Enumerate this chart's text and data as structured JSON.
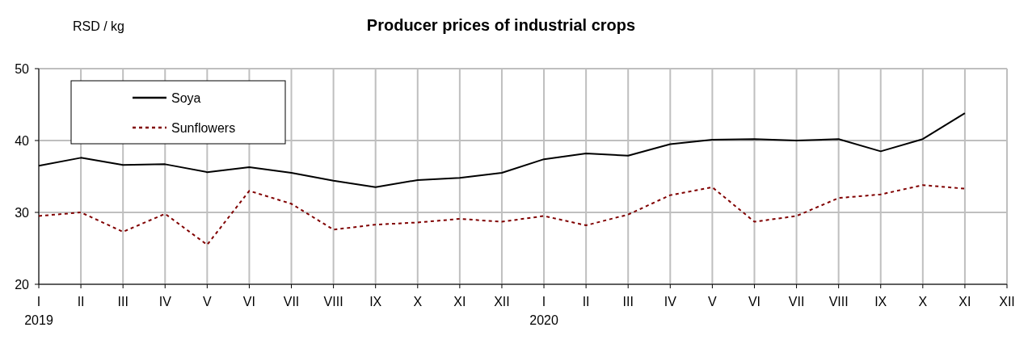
{
  "chart_data": {
    "type": "line",
    "title": "Producer prices of industrial crops",
    "ylabel": "RSD / kg",
    "categories": [
      "I\n2019",
      "II",
      "III",
      "IV",
      "V",
      "VI",
      "VII",
      "VIII",
      "IX",
      "X",
      "XI",
      "XII",
      "I\n2020",
      "II",
      "III",
      "IV",
      "V",
      "VI",
      "VII",
      "VIII",
      "IX",
      "X",
      "XI",
      "XII"
    ],
    "series": [
      {
        "name": "Soya",
        "color": "#000000",
        "line_style": "solid",
        "values": [
          36.5,
          37.6,
          36.6,
          36.7,
          35.6,
          36.3,
          35.5,
          34.4,
          33.5,
          34.5,
          34.8,
          35.5,
          37.4,
          38.2,
          37.9,
          39.5,
          40.1,
          40.2,
          40.0,
          40.2,
          38.5,
          40.2,
          43.8,
          null
        ]
      },
      {
        "name": "Sunflowers",
        "color": "#800000",
        "line_style": "dotted",
        "values": [
          29.5,
          30.0,
          27.3,
          29.8,
          25.5,
          33.0,
          31.2,
          27.6,
          28.3,
          28.6,
          29.1,
          28.7,
          29.5,
          28.2,
          29.7,
          32.4,
          33.5,
          28.7,
          29.5,
          32.0,
          32.5,
          33.8,
          33.3,
          null
        ]
      }
    ],
    "ylim": [
      20,
      50
    ],
    "yticks": [
      20,
      30,
      40,
      50
    ],
    "grid": true,
    "legend": "top left",
    "marker": "none"
  }
}
